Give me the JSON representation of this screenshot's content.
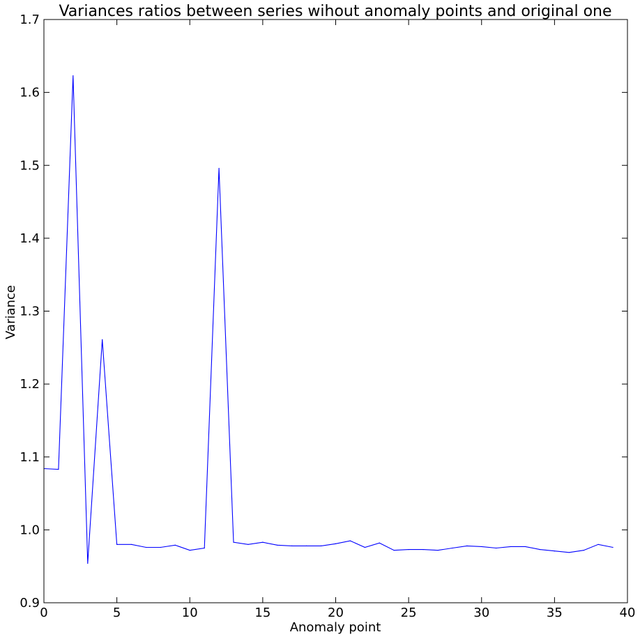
{
  "chart_data": {
    "type": "line",
    "title": "Variances ratios between series wihout anomaly points and original one",
    "xlabel": "Anomaly point",
    "ylabel": "Variance",
    "xlim": [
      0,
      40
    ],
    "ylim": [
      0.9,
      1.7
    ],
    "xticks": [
      0,
      5,
      10,
      15,
      20,
      25,
      30,
      35,
      40
    ],
    "yticks": [
      0.9,
      1.0,
      1.1,
      1.2,
      1.3,
      1.4,
      1.5,
      1.6,
      1.7
    ],
    "grid": false,
    "line_color": "#0000ff",
    "series": [
      {
        "x": [
          0,
          1,
          2,
          3,
          4,
          5,
          6,
          7,
          8,
          9,
          10,
          11,
          12,
          13,
          14,
          15,
          16,
          17,
          18,
          19,
          20,
          21,
          22,
          23,
          24,
          25,
          26,
          27,
          28,
          29,
          30,
          31,
          32,
          33,
          34,
          35,
          36,
          37,
          38,
          39
        ],
        "y": [
          1.084,
          1.083,
          1.623,
          0.954,
          1.261,
          0.98,
          0.98,
          0.976,
          0.976,
          0.979,
          0.972,
          0.975,
          1.496,
          0.983,
          0.98,
          0.983,
          0.979,
          0.978,
          0.978,
          0.978,
          0.981,
          0.985,
          0.976,
          0.982,
          0.972,
          0.973,
          0.973,
          0.972,
          0.975,
          0.978,
          0.977,
          0.975,
          0.977,
          0.977,
          0.973,
          0.971,
          0.969,
          0.972,
          0.98,
          0.976
        ]
      }
    ]
  }
}
